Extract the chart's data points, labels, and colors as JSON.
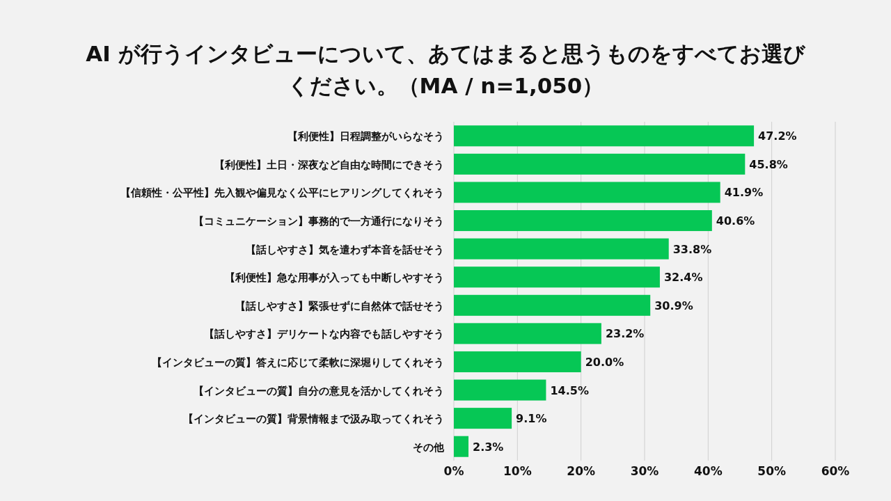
{
  "chart_data": {
    "type": "bar",
    "orientation": "horizontal",
    "title": "AI が行うインタビューについて、あてはまると思うものをすべてお選びください。（MA / n=1,050）",
    "categories": [
      "【利便性】日程調整がいらなそう",
      "【利便性】土日・深夜など自由な時間にできそう",
      "【信頼性・公平性】先入観や偏見なく公平にヒアリングしてくれそう",
      "【コミュニケーション】事務的で一方通行になりそう",
      "【話しやすさ】気を遣わず本音を話せそう",
      "【利便性】急な用事が入っても中断しやすそう",
      "【話しやすさ】緊張せずに自然体で話せそう",
      "【話しやすさ】デリケートな内容でも話しやすそう",
      "【インタビューの質】答えに応じて柔軟に深堀りしてくれそう",
      "【インタビューの質】自分の意見を活かしてくれそう",
      "【インタビューの質】背景情報まで汲み取ってくれそう",
      "その他"
    ],
    "values": [
      47.2,
      45.8,
      41.9,
      40.6,
      33.8,
      32.4,
      30.9,
      23.2,
      20.0,
      14.5,
      9.1,
      2.3
    ],
    "value_labels": [
      "47.2%",
      "45.8%",
      "41.9%",
      "40.6%",
      "33.8%",
      "32.4%",
      "30.9%",
      "23.2%",
      "20.0%",
      "14.5%",
      "9.1%",
      "2.3%"
    ],
    "color": "#06c755",
    "xlim": [
      0,
      60
    ],
    "xticks": [
      {
        "value": 0,
        "label": "0%"
      },
      {
        "value": 10,
        "label": "10%"
      },
      {
        "value": 20,
        "label": "20%"
      },
      {
        "value": 30,
        "label": "30%"
      },
      {
        "value": 40,
        "label": "40%"
      },
      {
        "value": 50,
        "label": "50%"
      },
      {
        "value": 60,
        "label": "60%"
      }
    ],
    "grid": "x"
  }
}
